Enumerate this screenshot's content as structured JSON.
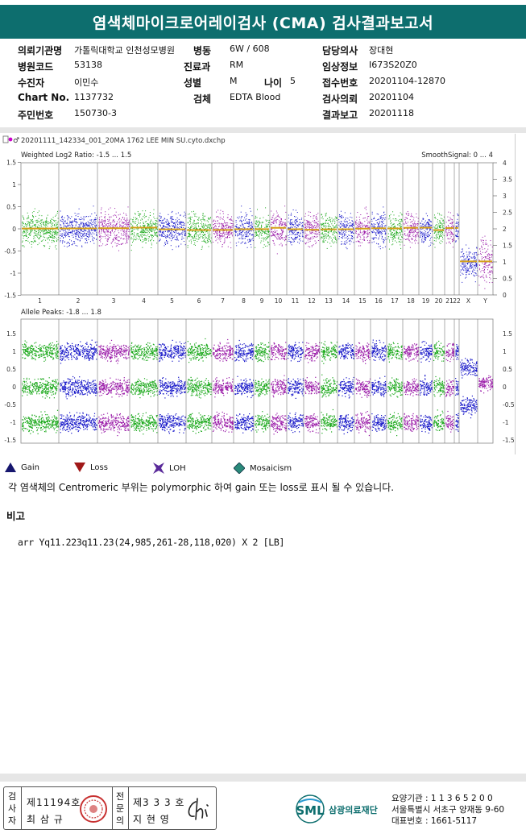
{
  "header": {
    "title": "염색체마이크로어레이검사 (CMA) 검사결과보고서"
  },
  "info": {
    "col1": [
      {
        "label": "의뢰기관명",
        "value": "가톨릭대학교 인천성모병원"
      },
      {
        "label": "병원코드",
        "value": "53138"
      },
      {
        "label": "수진자",
        "value": "이민수"
      },
      {
        "label": "Chart No.",
        "value": "1137732"
      },
      {
        "label": "주민번호",
        "value": "150730-3"
      }
    ],
    "col2": [
      {
        "label": "병동",
        "value": "6W / 608"
      },
      {
        "label": "진료과",
        "value": "RM"
      },
      {
        "label": "성별",
        "value": "M"
      },
      {
        "label": "검체",
        "value": "EDTA Blood"
      }
    ],
    "age": {
      "label": "나이",
      "value": "5"
    },
    "col3": [
      {
        "label": "담당의사",
        "value": "장대현"
      },
      {
        "label": "임상정보",
        "value": "I673S20Z0"
      },
      {
        "label": "접수번호",
        "value": "20201104-12870"
      },
      {
        "label": "검사의뢰",
        "value": "20201104"
      },
      {
        "label": "결과보고",
        "value": "20201118"
      }
    ]
  },
  "plot": {
    "filename": "20201111_142334_001_20MA 1762 LEE MIN SU.cyto.dxchp",
    "top_title": "Weighted Log2 Ratio: -1.5 ... 1.5",
    "top_right_title": "SmoothSignal: 0 ... 4",
    "bottom_title": "Allele Peaks: -1.8 ... 1.8",
    "top_left_ticks": [
      "1.5",
      "1",
      "0.5",
      "0",
      "-0.5",
      "-1",
      "-1.5"
    ],
    "top_right_ticks": [
      "4",
      "3.5",
      "3",
      "2.5",
      "2",
      "1.5",
      "1",
      "0.5",
      "0"
    ],
    "bottom_ticks": [
      "1.5",
      "1",
      "0.5",
      "0",
      "-0.5",
      "-1",
      "-1.5"
    ],
    "bottom_right_ticks": [
      "1.5",
      "1",
      "0.5",
      "0",
      "-0.5",
      "-1",
      "-1.5"
    ],
    "chromosomes": [
      "1",
      "2",
      "3",
      "4",
      "5",
      "6",
      "7",
      "8",
      "9",
      "10",
      "11",
      "12",
      "13",
      "14",
      "15",
      "16",
      "17",
      "18",
      "19",
      "20",
      "21",
      "22",
      "X",
      "Y"
    ],
    "colors": {
      "green": "#1aa81a",
      "blue": "#1414c8",
      "purple": "#9a1aa8",
      "smooth": "#d4a017"
    }
  },
  "legend": [
    {
      "icon": "gain-triangle-icon",
      "label": "Gain",
      "color": "#16166e"
    },
    {
      "icon": "loss-triangle-icon",
      "label": "Loss",
      "color": "#a01818"
    },
    {
      "icon": "loh-icon",
      "label": "LOH",
      "color": "#5a2a9a"
    },
    {
      "icon": "mosaicism-icon",
      "label": "Mosaicism",
      "color": "#2a8a7a"
    }
  ],
  "note": "각 염색체의 Centromeric 부위는 polymorphic 하여 gain 또는 loss로 표시 될 수 있습니다.",
  "remarks": {
    "title": "비고",
    "result": "arr Yq11.223q11.23(24,985,261-28,118,020) X 2 [LB]"
  },
  "footer": {
    "tester_label": "검사자",
    "tester_no": "제11194호",
    "tester_name": "최 삼 규",
    "specialist_label": "전문의",
    "specialist_no": "제3 3 3 호",
    "specialist_name": "지 현 영",
    "org_name": "삼광의료재단",
    "org_logo": "SML",
    "contact": [
      "요양기관 : 1 1 3 6 5 2 0 0",
      "서울특별시 서초구 양재동 9-60",
      "대표번호 : 1661-5117"
    ]
  }
}
